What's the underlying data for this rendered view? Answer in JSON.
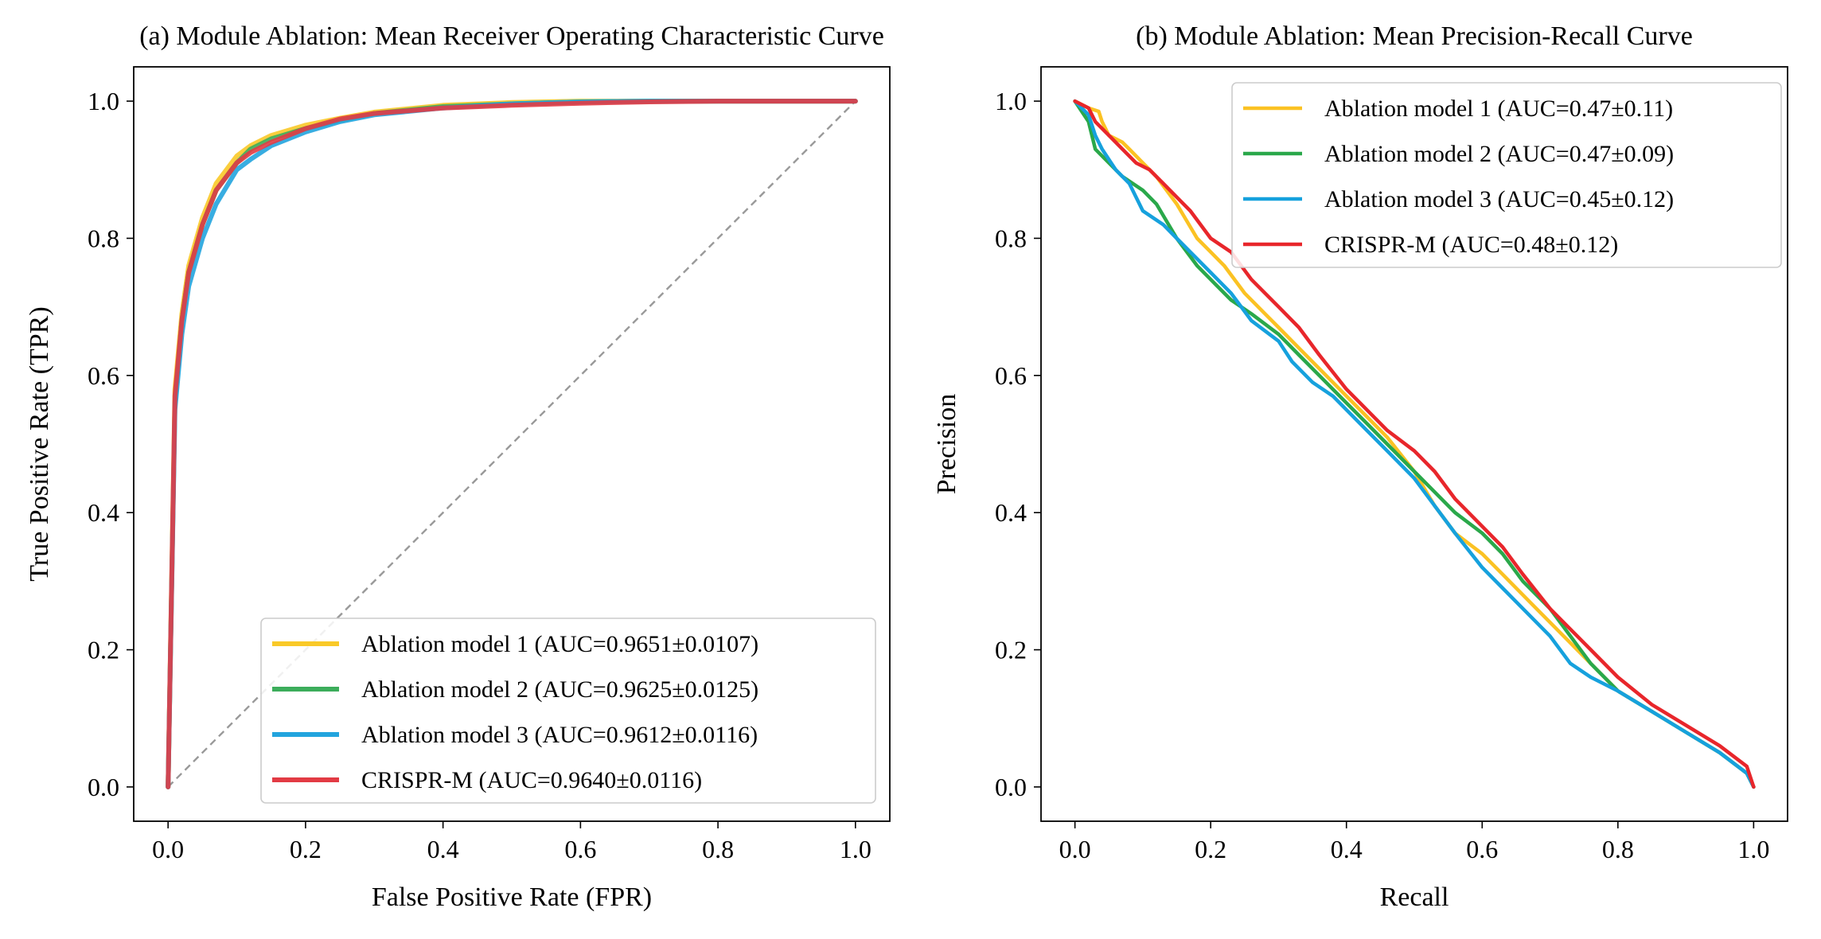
{
  "chart_data": [
    {
      "type": "line",
      "title": "(a) Module Ablation: Mean Receiver Operating Characteristic Curve",
      "xlabel": "False Positive Rate (FPR)",
      "ylabel": "True Positive Rate (TPR)",
      "xlim": [
        -0.05,
        1.05
      ],
      "ylim": [
        -0.05,
        1.05
      ],
      "xticks": [
        "0.0",
        "0.2",
        "0.4",
        "0.6",
        "0.8",
        "1.0"
      ],
      "yticks": [
        "0.0",
        "0.2",
        "0.4",
        "0.6",
        "0.8",
        "1.0"
      ],
      "grid": false,
      "legend_position": "lower-right",
      "reference_line": {
        "x": [
          0,
          1
        ],
        "y": [
          0,
          1
        ],
        "style": "dashed",
        "color": "#999999"
      },
      "series": [
        {
          "name": "Ablation model 1 (AUC=0.9651±0.0107)",
          "color": "#f9c928",
          "x": [
            0,
            0.01,
            0.02,
            0.03,
            0.05,
            0.07,
            0.1,
            0.12,
            0.15,
            0.2,
            0.25,
            0.3,
            0.4,
            0.5,
            0.6,
            0.7,
            0.8,
            0.9,
            1.0
          ],
          "y": [
            0,
            0.58,
            0.69,
            0.76,
            0.83,
            0.88,
            0.92,
            0.935,
            0.95,
            0.965,
            0.975,
            0.984,
            0.994,
            0.998,
            1.0,
            1.0,
            1.0,
            1.0,
            1.0
          ]
        },
        {
          "name": "Ablation model 2 (AUC=0.9625±0.0125)",
          "color": "#3cad5b",
          "x": [
            0,
            0.01,
            0.02,
            0.03,
            0.05,
            0.07,
            0.1,
            0.12,
            0.15,
            0.2,
            0.25,
            0.3,
            0.4,
            0.5,
            0.6,
            0.7,
            0.8,
            0.9,
            1.0
          ],
          "y": [
            0,
            0.56,
            0.68,
            0.75,
            0.82,
            0.87,
            0.91,
            0.93,
            0.945,
            0.96,
            0.972,
            0.982,
            0.992,
            0.996,
            0.999,
            1.0,
            1.0,
            1.0,
            1.0
          ]
        },
        {
          "name": "Ablation model 3 (AUC=0.9612±0.0116)",
          "color": "#22a4de",
          "x": [
            0,
            0.01,
            0.02,
            0.03,
            0.05,
            0.07,
            0.1,
            0.12,
            0.15,
            0.2,
            0.25,
            0.3,
            0.4,
            0.5,
            0.6,
            0.7,
            0.8,
            0.9,
            1.0
          ],
          "y": [
            0,
            0.55,
            0.66,
            0.73,
            0.8,
            0.85,
            0.9,
            0.915,
            0.935,
            0.955,
            0.97,
            0.98,
            0.99,
            0.996,
            0.999,
            1.0,
            1.0,
            1.0,
            1.0
          ]
        },
        {
          "name": "CRISPR-M (AUC=0.9640±0.0116)",
          "color": "#e23b44",
          "x": [
            0,
            0.01,
            0.02,
            0.03,
            0.05,
            0.07,
            0.1,
            0.12,
            0.15,
            0.2,
            0.25,
            0.3,
            0.4,
            0.5,
            0.6,
            0.7,
            0.8,
            0.9,
            1.0
          ],
          "y": [
            0,
            0.57,
            0.68,
            0.75,
            0.82,
            0.87,
            0.91,
            0.925,
            0.94,
            0.96,
            0.974,
            0.982,
            0.99,
            0.994,
            0.997,
            0.999,
            1.0,
            1.0,
            1.0
          ]
        }
      ]
    },
    {
      "type": "line",
      "title": "(b) Module Ablation: Mean Precision-Recall Curve",
      "xlabel": "Recall",
      "ylabel": "Precision",
      "xlim": [
        -0.05,
        1.05
      ],
      "ylim": [
        -0.05,
        1.05
      ],
      "xticks": [
        "0.0",
        "0.2",
        "0.4",
        "0.6",
        "0.8",
        "1.0"
      ],
      "yticks": [
        "0.0",
        "0.2",
        "0.4",
        "0.6",
        "0.8",
        "1.0"
      ],
      "grid": false,
      "legend_position": "upper-right",
      "series": [
        {
          "name": "Ablation model 1 (AUC=0.47±0.11)",
          "color": "#fbc223",
          "x": [
            0,
            0.02,
            0.035,
            0.04,
            0.05,
            0.07,
            0.08,
            0.1,
            0.12,
            0.15,
            0.18,
            0.2,
            0.22,
            0.25,
            0.28,
            0.3,
            0.33,
            0.36,
            0.4,
            0.43,
            0.46,
            0.5,
            0.53,
            0.56,
            0.6,
            0.63,
            0.66,
            0.7,
            0.73,
            0.76,
            0.8,
            0.85,
            0.9,
            0.95,
            0.99,
            1.0
          ],
          "y": [
            1.0,
            0.99,
            0.985,
            0.97,
            0.95,
            0.94,
            0.93,
            0.91,
            0.89,
            0.85,
            0.8,
            0.78,
            0.76,
            0.72,
            0.69,
            0.67,
            0.64,
            0.61,
            0.57,
            0.54,
            0.51,
            0.46,
            0.41,
            0.37,
            0.34,
            0.31,
            0.28,
            0.24,
            0.21,
            0.18,
            0.14,
            0.11,
            0.08,
            0.05,
            0.02,
            0.0
          ]
        },
        {
          "name": "Ablation model 2 (AUC=0.47±0.09)",
          "color": "#2aa84a",
          "x": [
            0,
            0.02,
            0.03,
            0.05,
            0.07,
            0.1,
            0.12,
            0.15,
            0.18,
            0.2,
            0.23,
            0.26,
            0.3,
            0.33,
            0.36,
            0.4,
            0.43,
            0.46,
            0.5,
            0.53,
            0.56,
            0.6,
            0.63,
            0.66,
            0.7,
            0.73,
            0.76,
            0.8,
            0.85,
            0.9,
            0.95,
            0.99,
            1.0
          ],
          "y": [
            1.0,
            0.97,
            0.93,
            0.91,
            0.89,
            0.87,
            0.85,
            0.8,
            0.76,
            0.74,
            0.71,
            0.69,
            0.66,
            0.63,
            0.6,
            0.56,
            0.53,
            0.5,
            0.46,
            0.43,
            0.4,
            0.37,
            0.34,
            0.3,
            0.26,
            0.22,
            0.18,
            0.14,
            0.11,
            0.08,
            0.05,
            0.02,
            0.0
          ]
        },
        {
          "name": "Ablation model 3 (AUC=0.45±0.12)",
          "color": "#16a1dd",
          "x": [
            0,
            0.02,
            0.03,
            0.04,
            0.06,
            0.08,
            0.09,
            0.1,
            0.13,
            0.15,
            0.17,
            0.2,
            0.23,
            0.26,
            0.3,
            0.32,
            0.35,
            0.38,
            0.4,
            0.43,
            0.46,
            0.5,
            0.53,
            0.56,
            0.6,
            0.63,
            0.66,
            0.7,
            0.73,
            0.76,
            0.8,
            0.85,
            0.9,
            0.95,
            0.99,
            1.0
          ],
          "y": [
            1.0,
            0.98,
            0.95,
            0.93,
            0.9,
            0.88,
            0.86,
            0.84,
            0.82,
            0.8,
            0.78,
            0.75,
            0.72,
            0.68,
            0.65,
            0.62,
            0.59,
            0.57,
            0.55,
            0.52,
            0.49,
            0.45,
            0.41,
            0.37,
            0.32,
            0.29,
            0.26,
            0.22,
            0.18,
            0.16,
            0.14,
            0.11,
            0.08,
            0.05,
            0.02,
            0.0
          ]
        },
        {
          "name": "CRISPR-M (AUC=0.48±0.12)",
          "color": "#e8262b",
          "x": [
            0,
            0.02,
            0.03,
            0.05,
            0.07,
            0.09,
            0.11,
            0.13,
            0.15,
            0.17,
            0.2,
            0.23,
            0.26,
            0.3,
            0.33,
            0.36,
            0.4,
            0.43,
            0.46,
            0.5,
            0.53,
            0.56,
            0.6,
            0.63,
            0.66,
            0.7,
            0.73,
            0.76,
            0.8,
            0.85,
            0.9,
            0.95,
            0.99,
            1.0
          ],
          "y": [
            1.0,
            0.99,
            0.97,
            0.95,
            0.93,
            0.91,
            0.9,
            0.88,
            0.86,
            0.84,
            0.8,
            0.78,
            0.74,
            0.7,
            0.67,
            0.63,
            0.58,
            0.55,
            0.52,
            0.49,
            0.46,
            0.42,
            0.38,
            0.35,
            0.31,
            0.26,
            0.23,
            0.2,
            0.16,
            0.12,
            0.09,
            0.06,
            0.03,
            0.0
          ]
        }
      ]
    }
  ]
}
